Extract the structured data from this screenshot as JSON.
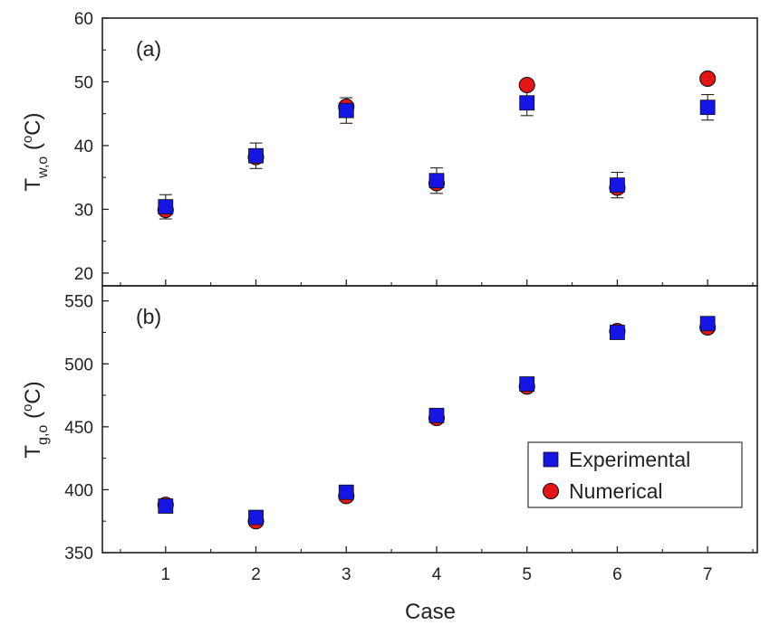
{
  "chart_data": [
    {
      "type": "scatter",
      "panel_label": "(a)",
      "ylabel": {
        "main": "T",
        "sub": "w,o",
        "unit_open": " (",
        "sup": "o",
        "unit": "C)"
      },
      "ylim": [
        18,
        60
      ],
      "yticks": [
        20,
        30,
        40,
        50,
        60
      ],
      "x": [
        1,
        2,
        3,
        4,
        5,
        6,
        7
      ],
      "series": [
        {
          "name": "Experimental",
          "marker": "square",
          "color": "#1515e6",
          "values": [
            30.4,
            38.4,
            45.5,
            34.5,
            46.7,
            33.8,
            46.0
          ],
          "error": [
            1.9,
            2.0,
            2.0,
            2.0,
            2.0,
            2.0,
            2.0
          ]
        },
        {
          "name": "Numerical",
          "marker": "circle",
          "color": "#e61515",
          "values": [
            29.9,
            38.2,
            46.1,
            34.1,
            49.5,
            33.4,
            50.5
          ]
        }
      ]
    },
    {
      "type": "scatter",
      "panel_label": "(b)",
      "ylabel": {
        "main": "T",
        "sub": "g,o",
        "unit_open": " (",
        "sup": "o",
        "unit": "C)"
      },
      "ylim": [
        350,
        562
      ],
      "yticks": [
        350,
        400,
        450,
        500,
        550
      ],
      "x": [
        1,
        2,
        3,
        4,
        5,
        6,
        7
      ],
      "xlabel": "Case",
      "xticks": [
        "1",
        "2",
        "3",
        "4",
        "5",
        "6",
        "7"
      ],
      "series": [
        {
          "name": "Experimental",
          "marker": "square",
          "color": "#1515e6",
          "values": [
            387,
            378,
            398,
            459,
            484,
            525,
            532
          ]
        },
        {
          "name": "Numerical",
          "marker": "circle",
          "color": "#e61515",
          "values": [
            388,
            375,
            395,
            457,
            482,
            526,
            529
          ]
        }
      ],
      "legend": {
        "position": "lower-right",
        "entries": [
          "Experimental",
          "Numerical"
        ]
      }
    }
  ]
}
